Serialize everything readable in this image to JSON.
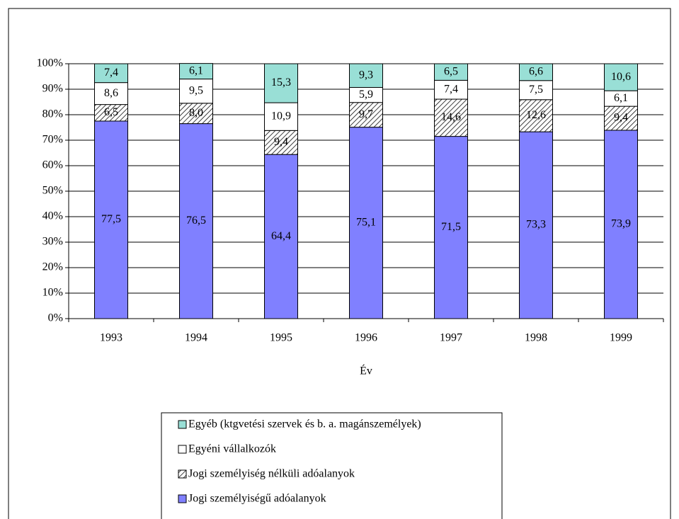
{
  "chart_data": {
    "type": "stacked_bar",
    "xlabel": "Év",
    "categories": [
      "1993",
      "1994",
      "1995",
      "1996",
      "1997",
      "1998",
      "1999"
    ],
    "series": [
      {
        "name": "Jogi személyiségű adóalanyok",
        "color": "#8080ff",
        "values": [
          77.5,
          76.5,
          64.4,
          75.1,
          71.5,
          73.3,
          73.9
        ],
        "value_labels": [
          "77,5",
          "76,5",
          "64,4",
          "75,1",
          "71,5",
          "73,3",
          "73,9"
        ]
      },
      {
        "name": "Jogi személyiség nélküli adóalanyok",
        "color": "#000000",
        "pattern": "hatch",
        "values": [
          6.5,
          8.0,
          9.4,
          9.7,
          14.6,
          12.6,
          9.4
        ],
        "value_labels": [
          "6,5",
          "8,0",
          "9,4",
          "9,7",
          "14,6",
          "12,6",
          "9,4"
        ]
      },
      {
        "name": "Egyéni vállalkozók",
        "color": "#ffffff",
        "values": [
          8.6,
          9.5,
          10.9,
          5.9,
          7.4,
          7.5,
          6.1
        ],
        "value_labels": [
          "8,6",
          "9,5",
          "10,9",
          "5,9",
          "7,4",
          "7,5",
          "6,1"
        ]
      },
      {
        "name": "Egyéb (ktgvetési szervek és b. a. magánszemélyek)",
        "color": "#99dfd6",
        "values": [
          7.4,
          6.1,
          15.3,
          9.3,
          6.5,
          6.6,
          10.6
        ],
        "value_labels": [
          "7,4",
          "6,1",
          "15,3",
          "9,3",
          "6,5",
          "6,6",
          "10,6"
        ]
      }
    ],
    "ylim": [
      0,
      100
    ],
    "yticks": [
      {
        "value": 0,
        "label": "0%"
      },
      {
        "value": 10,
        "label": "10%"
      },
      {
        "value": 20,
        "label": "20%"
      },
      {
        "value": 30,
        "label": "30%"
      },
      {
        "value": 40,
        "label": "40%"
      },
      {
        "value": 50,
        "label": "50%"
      },
      {
        "value": 60,
        "label": "60%"
      },
      {
        "value": 70,
        "label": "70%"
      },
      {
        "value": 80,
        "label": "80%"
      },
      {
        "value": 90,
        "label": "90%"
      },
      {
        "value": 100,
        "label": "100%"
      }
    ],
    "grid": true,
    "legend": "bottom"
  }
}
